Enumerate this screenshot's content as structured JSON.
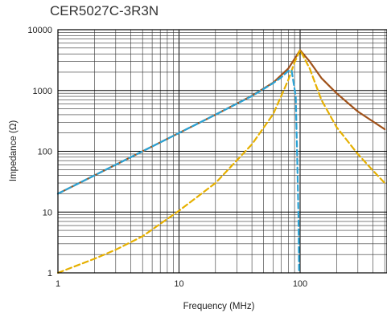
{
  "chart_data": {
    "type": "line",
    "title": "CER5027C-3R3N",
    "xlabel": "Frequency (MHz)",
    "ylabel": "Impedance (Ω)",
    "x_scale": "log",
    "y_scale": "log",
    "xlim": [
      1,
      500
    ],
    "ylim": [
      1,
      10000
    ],
    "grid": true,
    "x_tick_labels": [
      {
        "value": 1,
        "label": "1"
      },
      {
        "value": 10,
        "label": "10"
      },
      {
        "value": 100,
        "label": "100"
      }
    ],
    "y_tick_labels": [
      {
        "value": 1,
        "label": "1"
      },
      {
        "value": 10,
        "label": "10"
      },
      {
        "value": 100,
        "label": "100"
      },
      {
        "value": 1000,
        "label": "1000"
      },
      {
        "value": 10000,
        "label": "10000"
      }
    ],
    "series": [
      {
        "color": "#a0521a",
        "dash": "solid",
        "x": [
          1,
          2,
          5,
          10,
          20,
          40,
          60,
          80,
          90,
          100,
          120,
          150,
          200,
          300,
          500
        ],
        "y": [
          20,
          40,
          100,
          200,
          400,
          820,
          1350,
          2300,
          3300,
          4600,
          3000,
          1600,
          900,
          450,
          230
        ]
      },
      {
        "color": "#e6b000",
        "dash": "dashed",
        "x": [
          1,
          2,
          3,
          5,
          10,
          20,
          40,
          60,
          80,
          90,
          100,
          120,
          150,
          200,
          300,
          400,
          500
        ],
        "y": [
          1,
          1.7,
          2.4,
          4,
          10.5,
          30,
          130,
          410,
          1500,
          2900,
          4600,
          2300,
          700,
          250,
          90,
          48,
          30
        ]
      },
      {
        "color": "#2aa3d6",
        "dash": "dashed",
        "x": [
          1,
          2,
          5,
          10,
          20,
          40,
          60,
          70,
          80,
          85,
          92,
          95,
          97,
          98
        ],
        "y": [
          20,
          40,
          100,
          200,
          400,
          810,
          1320,
          1650,
          2100,
          2150,
          800,
          60,
          8,
          1
        ]
      }
    ]
  }
}
